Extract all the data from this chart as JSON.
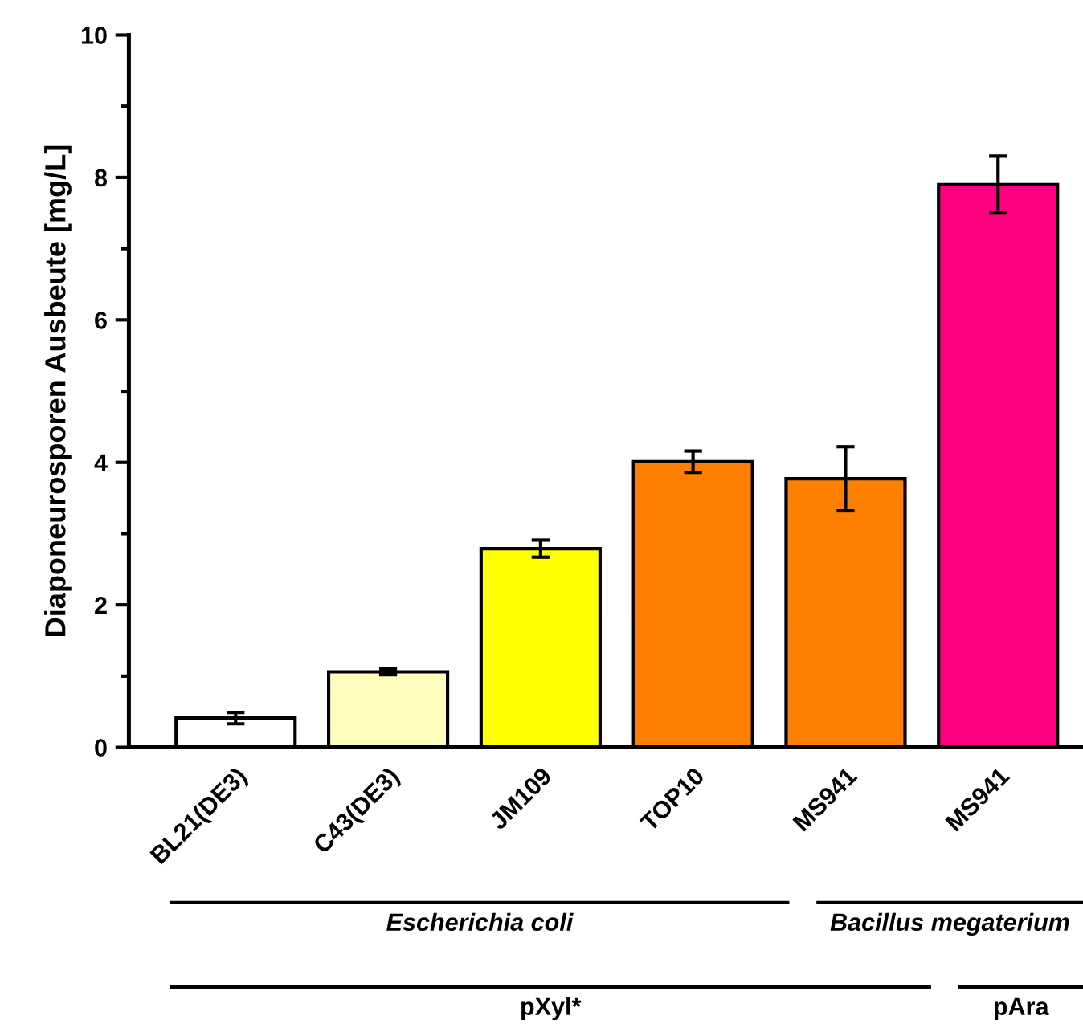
{
  "chart_data": {
    "type": "bar",
    "ylabel": "Diaponeurosporen Ausbeute [mg/L]",
    "categories": [
      "BL21(DE3)",
      "C43(DE3)",
      "JM109",
      "TOP10",
      "MS941",
      "MS941"
    ],
    "values": [
      0.41,
      1.06,
      2.79,
      4.01,
      3.77,
      7.9
    ],
    "errors": [
      0.08,
      0.04,
      0.12,
      0.15,
      0.45,
      0.4
    ],
    "colors": [
      "#ffffff",
      "#ffffc0",
      "#ffff00",
      "#ff8000",
      "#ff8000",
      "#ff0080"
    ],
    "ylim": [
      0,
      10
    ],
    "yticks": [
      0,
      2,
      4,
      6,
      8,
      10
    ],
    "annotations": [
      "Escherichia coli",
      "Bacillus megaterium",
      "pXyl*",
      "pAra"
    ],
    "grid": false,
    "legend": false
  }
}
